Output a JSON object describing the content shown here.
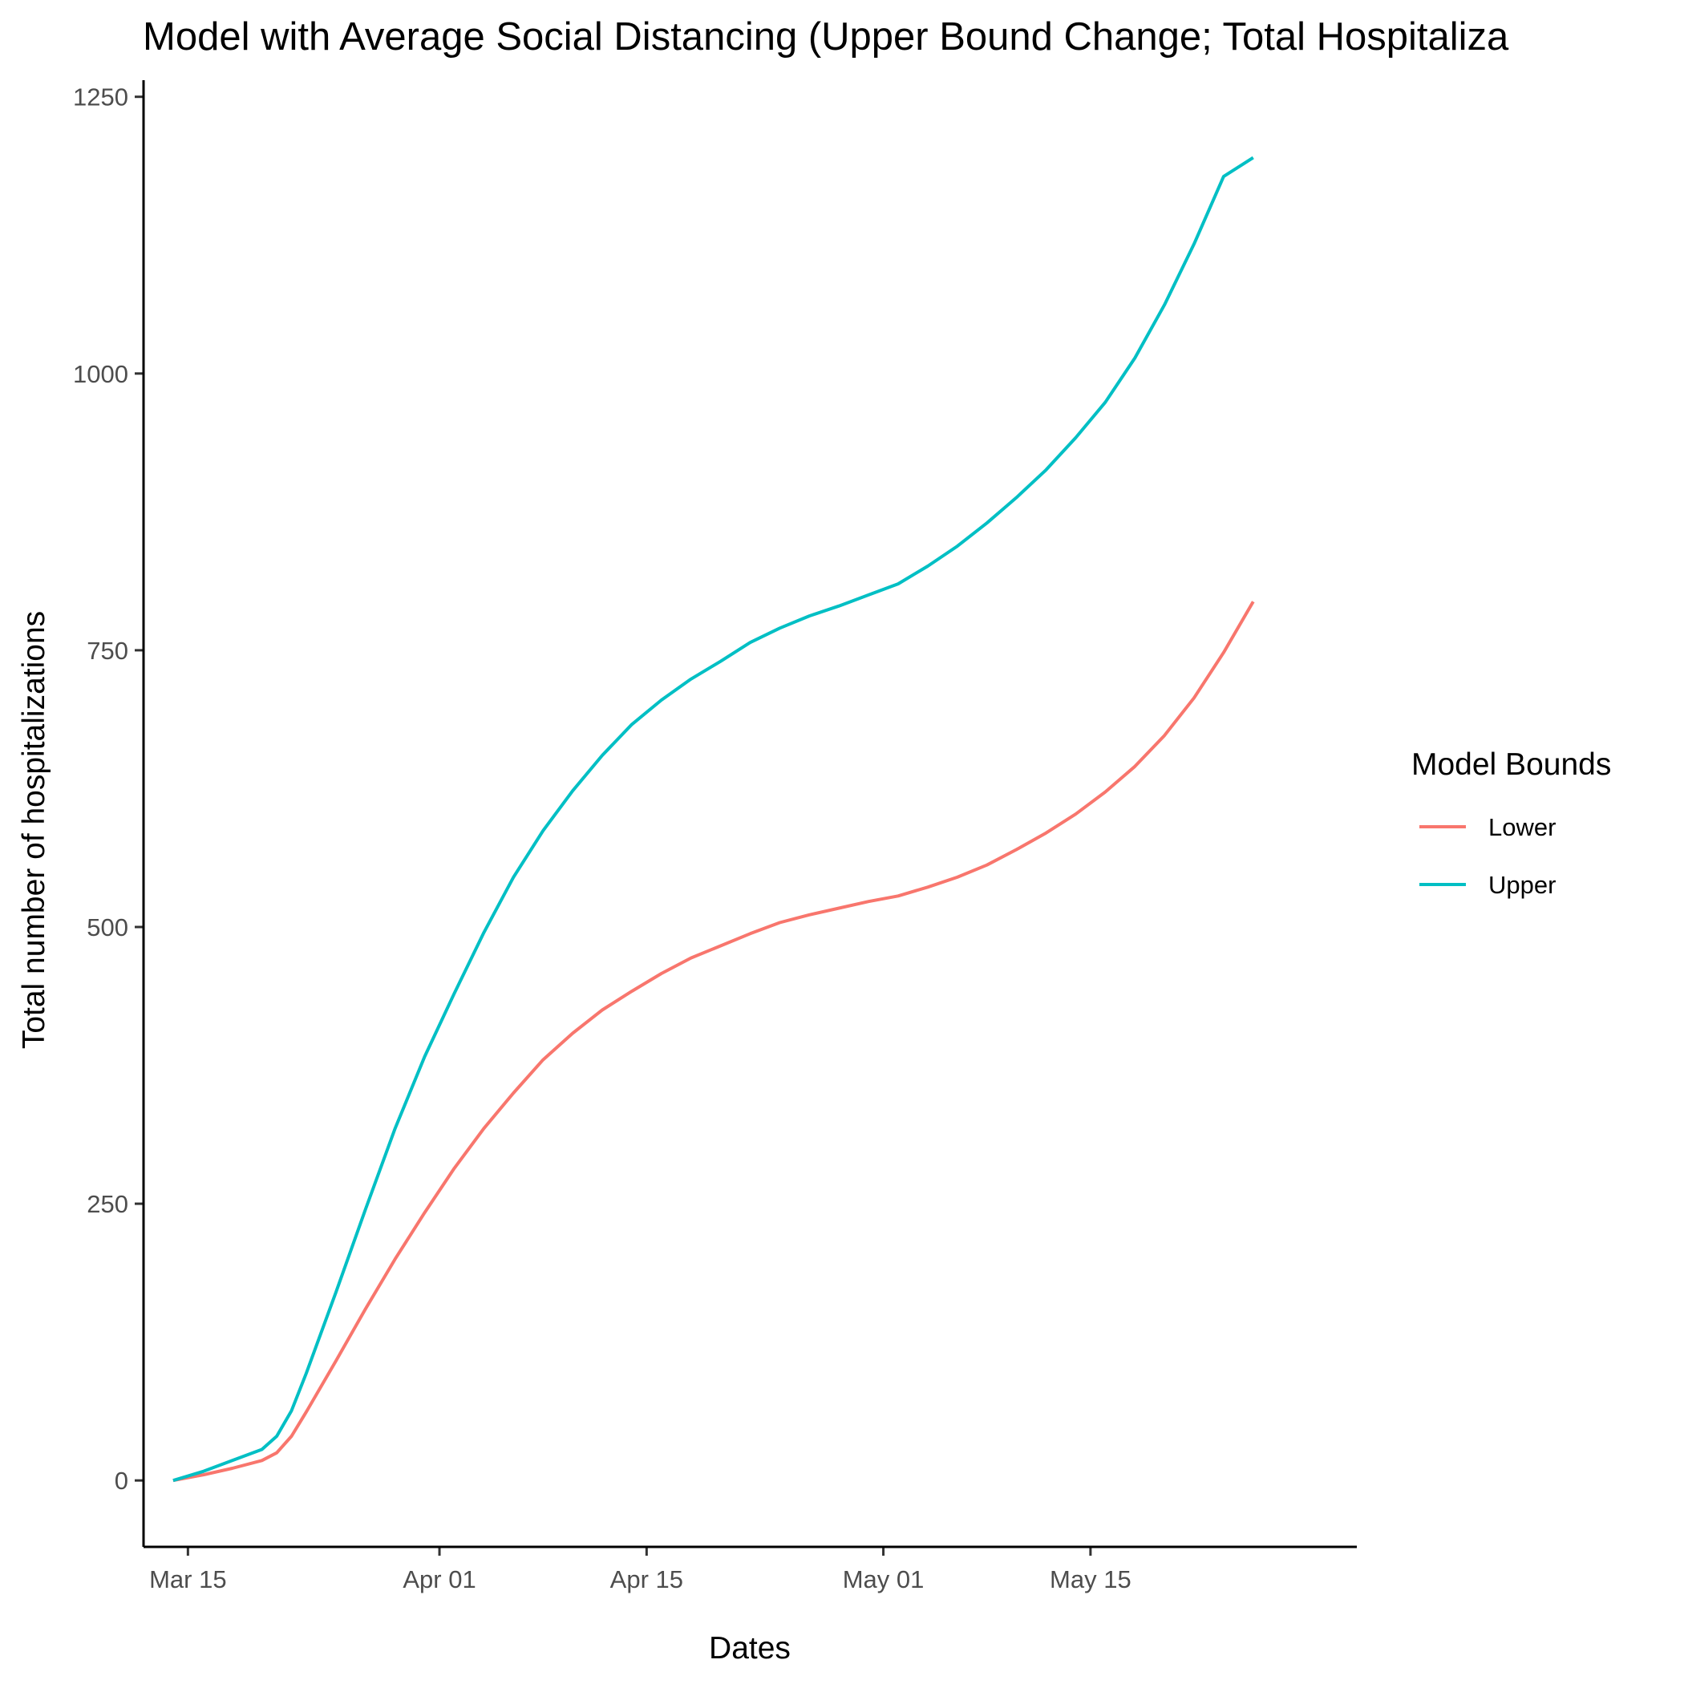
{
  "chart_data": {
    "type": "line",
    "title": "Model with Average Social Distancing (Upper Bound Change; Total Hospitaliza",
    "xlabel": "Dates",
    "ylabel": "Total number of hospitalizations",
    "x_ticks": [
      "Mar 15",
      "Apr 01",
      "Apr 15",
      "May 01",
      "May 15"
    ],
    "y_ticks": [
      "0",
      "250",
      "500",
      "750",
      "1000",
      "1250"
    ],
    "y_tick_values": [
      0,
      250,
      500,
      750,
      1000,
      1250
    ],
    "xlim": [
      "2020-03-12",
      "2020-06-02"
    ],
    "ylim": [
      -60,
      1265
    ],
    "grid": false,
    "legend": {
      "title": "Model Bounds",
      "position": "right"
    },
    "series": [
      {
        "name": "Lower",
        "color": "#F8766D",
        "points": [
          [
            "2020-03-14",
            0
          ],
          [
            "2020-03-16",
            5
          ],
          [
            "2020-03-18",
            11
          ],
          [
            "2020-03-20",
            18
          ],
          [
            "2020-03-21",
            25
          ],
          [
            "2020-03-22",
            40
          ],
          [
            "2020-03-23",
            62
          ],
          [
            "2020-03-25",
            108
          ],
          [
            "2020-03-27",
            155
          ],
          [
            "2020-03-29",
            200
          ],
          [
            "2020-03-31",
            242
          ],
          [
            "2020-04-02",
            282
          ],
          [
            "2020-04-04",
            318
          ],
          [
            "2020-04-06",
            350
          ],
          [
            "2020-04-08",
            380
          ],
          [
            "2020-04-10",
            404
          ],
          [
            "2020-04-12",
            425
          ],
          [
            "2020-04-14",
            442
          ],
          [
            "2020-04-16",
            458
          ],
          [
            "2020-04-18",
            472
          ],
          [
            "2020-04-20",
            483
          ],
          [
            "2020-04-22",
            494
          ],
          [
            "2020-04-24",
            504
          ],
          [
            "2020-04-26",
            511
          ],
          [
            "2020-04-28",
            517
          ],
          [
            "2020-04-30",
            523
          ],
          [
            "2020-05-02",
            528
          ],
          [
            "2020-05-04",
            536
          ],
          [
            "2020-05-06",
            545
          ],
          [
            "2020-05-08",
            556
          ],
          [
            "2020-05-10",
            570
          ],
          [
            "2020-05-12",
            585
          ],
          [
            "2020-05-14",
            602
          ],
          [
            "2020-05-16",
            622
          ],
          [
            "2020-05-18",
            645
          ],
          [
            "2020-05-20",
            673
          ],
          [
            "2020-05-22",
            707
          ],
          [
            "2020-05-24",
            748
          ],
          [
            "2020-05-26",
            794
          ]
        ]
      },
      {
        "name": "Upper",
        "color": "#00BFC4",
        "points": [
          [
            "2020-03-14",
            0
          ],
          [
            "2020-03-16",
            8
          ],
          [
            "2020-03-18",
            18
          ],
          [
            "2020-03-20",
            28
          ],
          [
            "2020-03-21",
            40
          ],
          [
            "2020-03-22",
            63
          ],
          [
            "2020-03-23",
            97
          ],
          [
            "2020-03-25",
            170
          ],
          [
            "2020-03-27",
            245
          ],
          [
            "2020-03-29",
            318
          ],
          [
            "2020-03-31",
            383
          ],
          [
            "2020-04-02",
            440
          ],
          [
            "2020-04-04",
            495
          ],
          [
            "2020-04-06",
            545
          ],
          [
            "2020-04-08",
            587
          ],
          [
            "2020-04-10",
            623
          ],
          [
            "2020-04-12",
            655
          ],
          [
            "2020-04-14",
            683
          ],
          [
            "2020-04-16",
            705
          ],
          [
            "2020-04-18",
            724
          ],
          [
            "2020-04-20",
            740
          ],
          [
            "2020-04-22",
            757
          ],
          [
            "2020-04-24",
            770
          ],
          [
            "2020-04-26",
            781
          ],
          [
            "2020-04-28",
            790
          ],
          [
            "2020-04-30",
            800
          ],
          [
            "2020-05-02",
            810
          ],
          [
            "2020-05-04",
            826
          ],
          [
            "2020-05-06",
            844
          ],
          [
            "2020-05-08",
            865
          ],
          [
            "2020-05-10",
            888
          ],
          [
            "2020-05-12",
            913
          ],
          [
            "2020-05-14",
            942
          ],
          [
            "2020-05-16",
            974
          ],
          [
            "2020-05-18",
            1014
          ],
          [
            "2020-05-20",
            1062
          ],
          [
            "2020-05-22",
            1117
          ],
          [
            "2020-05-24",
            1178
          ],
          [
            "2020-05-26",
            1195
          ]
        ]
      }
    ]
  }
}
